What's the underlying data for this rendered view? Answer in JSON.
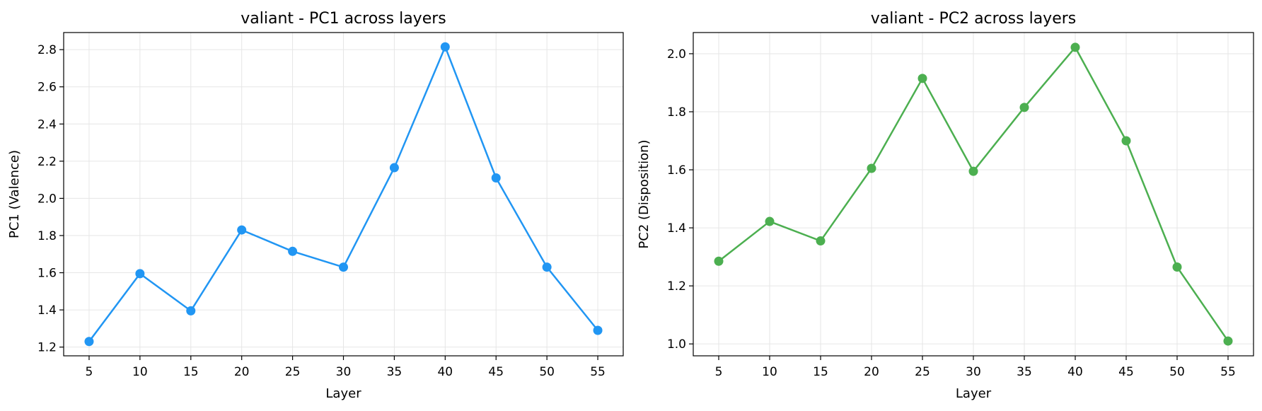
{
  "chart_data": [
    {
      "type": "line",
      "title": "valiant - PC1 across layers",
      "xlabel": "Layer",
      "ylabel": "PC1 (Valence)",
      "x": [
        5,
        10,
        15,
        20,
        25,
        30,
        35,
        40,
        45,
        50,
        55
      ],
      "series": [
        {
          "values": [
            1.23,
            1.595,
            1.395,
            1.83,
            1.715,
            1.63,
            2.165,
            2.815,
            2.11,
            1.63,
            1.29
          ]
        }
      ],
      "xlim": [
        2.5,
        57.5
      ],
      "ylim": [
        1.153,
        2.892
      ],
      "xticks": [
        5,
        10,
        15,
        20,
        25,
        30,
        35,
        40,
        45,
        50,
        55
      ],
      "yticks": [
        1.2,
        1.4,
        1.6,
        1.8,
        2.0,
        2.2,
        2.4,
        2.6,
        2.8
      ],
      "ytick_labels": [
        "1.2",
        "1.4",
        "1.6",
        "1.8",
        "2.0",
        "2.2",
        "2.4",
        "2.6",
        "2.8"
      ],
      "color": "#2196F3",
      "grid": true
    },
    {
      "type": "line",
      "title": "valiant - PC2 across layers",
      "xlabel": "Layer",
      "ylabel": "PC2 (Disposition)",
      "x": [
        5,
        10,
        15,
        20,
        25,
        30,
        35,
        40,
        45,
        50,
        55
      ],
      "series": [
        {
          "values": [
            1.285,
            1.422,
            1.355,
            1.605,
            1.915,
            1.595,
            1.815,
            2.022,
            1.7,
            1.265,
            1.01
          ]
        }
      ],
      "xlim": [
        2.5,
        57.5
      ],
      "ylim": [
        0.959,
        2.073
      ],
      "xticks": [
        5,
        10,
        15,
        20,
        25,
        30,
        35,
        40,
        45,
        50,
        55
      ],
      "yticks": [
        1.0,
        1.2,
        1.4,
        1.6,
        1.8,
        2.0
      ],
      "ytick_labels": [
        "1.0",
        "1.2",
        "1.4",
        "1.6",
        "1.8",
        "2.0"
      ],
      "color": "#4CAF50",
      "grid": true
    }
  ]
}
